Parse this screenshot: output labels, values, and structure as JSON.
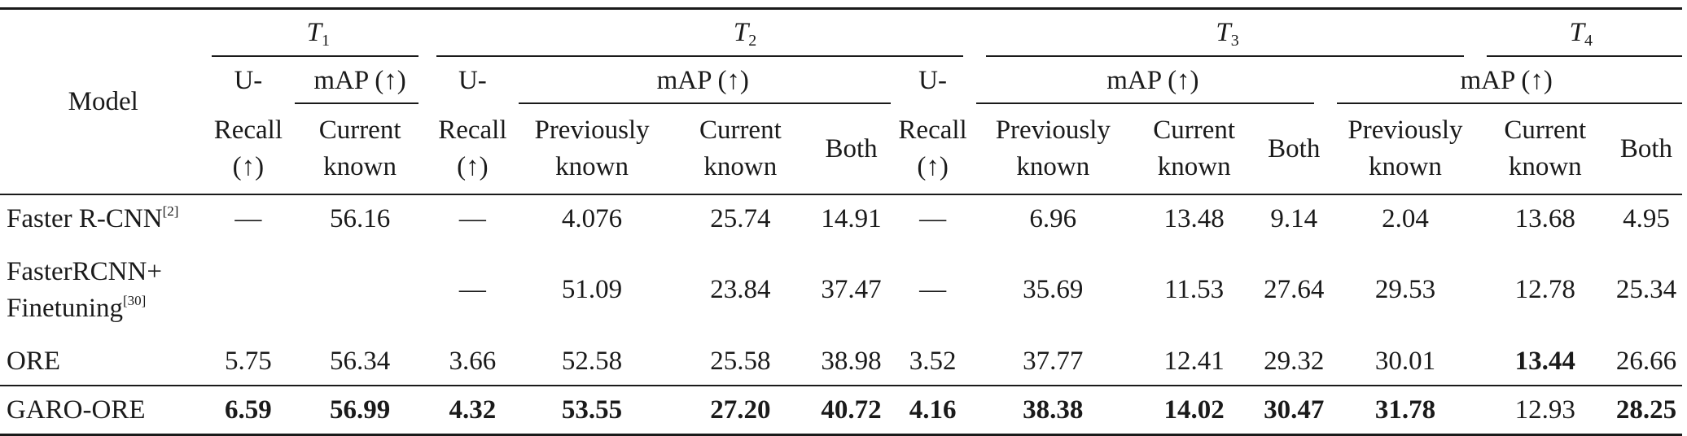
{
  "header": {
    "model_label": "Model",
    "tasks": [
      "T1",
      "T2",
      "T3",
      "T4"
    ],
    "task_prefix": "T",
    "task_subscripts": [
      "1",
      "2",
      "3",
      "4"
    ],
    "u_recall_top": "U-",
    "u_recall_mid": "Recall",
    "u_recall_arrow": "(↑)",
    "map_label": "mAP (↑)",
    "current_line1": "Current",
    "current_line2": "known",
    "previously_line1": "Previously",
    "previously_line2": "known",
    "both_label": "Both"
  },
  "rows": [
    {
      "model": "Faster R-CNN",
      "ref": "[2]",
      "cells": [
        "—",
        "56.16",
        "—",
        "4.076",
        "25.74",
        "14.91",
        "—",
        "6.96",
        "13.48",
        "9.14",
        "2.04",
        "13.68",
        "4.95"
      ]
    },
    {
      "model_line1": "FasterRCNN+",
      "model_line2": "Finetuning",
      "ref": "[30]",
      "cells": [
        "",
        "",
        "—",
        "51.09",
        "23.84",
        "37.47",
        "—",
        "35.69",
        "11.53",
        "27.64",
        "29.53",
        "12.78",
        "25.34"
      ]
    },
    {
      "model": "ORE",
      "cells": [
        "5.75",
        "56.34",
        "3.66",
        "52.58",
        "25.58",
        "38.98",
        "3.52",
        "37.77",
        "12.41",
        "29.32",
        "30.01",
        "13.44",
        "26.66"
      ]
    },
    {
      "model": "GARO-ORE",
      "cells": [
        "6.59",
        "56.99",
        "4.32",
        "53.55",
        "27.20",
        "40.72",
        "4.16",
        "38.38",
        "14.02",
        "30.47",
        "31.78",
        "12.93",
        "28.25"
      ]
    }
  ]
}
